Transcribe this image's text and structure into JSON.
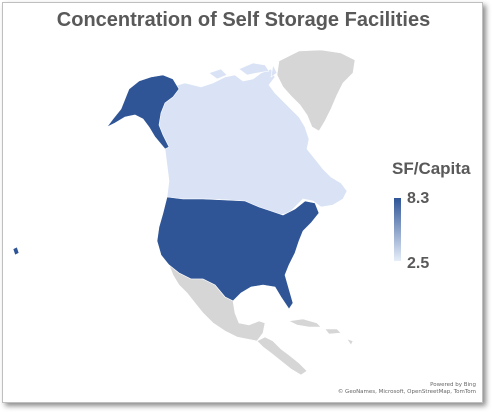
{
  "title": "Concentration of Self Storage Facilities",
  "legend": {
    "title": "SF/Capita",
    "max_label": "8.3",
    "min_label": "2.5",
    "max_value": 8.3,
    "min_value": 2.5,
    "low_color": "#e6eef9",
    "high_color": "#2f5597"
  },
  "regions": [
    {
      "name": "United States",
      "value": 8.3,
      "color": "#2f5597"
    },
    {
      "name": "Canada",
      "value": 2.5,
      "color": "#d9e3f5"
    },
    {
      "name": "Greenland",
      "value": null,
      "color": "#d6d6d6"
    },
    {
      "name": "Mexico",
      "value": null,
      "color": "#d6d6d6"
    },
    {
      "name": "Central America",
      "value": null,
      "color": "#d6d6d6"
    },
    {
      "name": "Caribbean",
      "value": null,
      "color": "#d6d6d6"
    }
  ],
  "attribution": {
    "line1": "Powered by Bing",
    "line2": "© GeoNames, Microsoft, OpenStreetMap, TomTom"
  }
}
